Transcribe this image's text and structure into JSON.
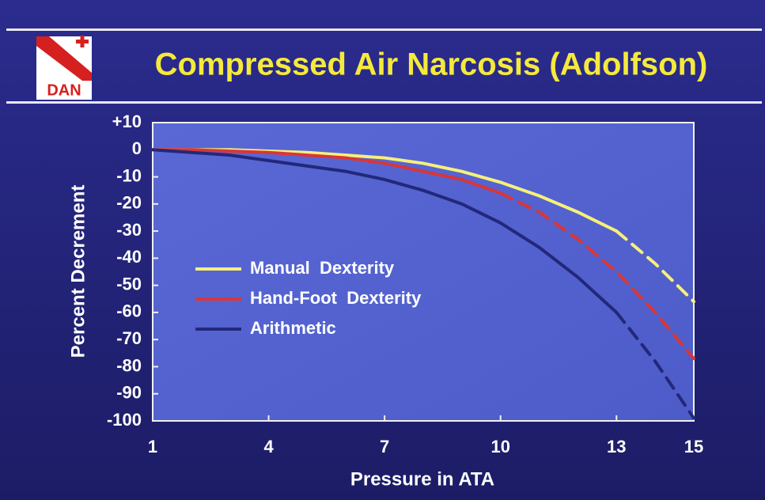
{
  "logo": {
    "text": "DAN"
  },
  "chart_data": {
    "type": "line",
    "title": "Compressed Air Narcosis (Adolfson)",
    "x_label": "Pressure in ATA",
    "y_label": "Percent Decrement",
    "x": [
      1,
      2,
      3,
      4,
      5,
      6,
      7,
      8,
      9,
      10,
      11,
      12,
      13,
      14,
      15
    ],
    "series": [
      {
        "name": "Manual  Dexterity",
        "color": "#f7f07a",
        "solid_until": 13,
        "values": [
          0,
          0,
          0,
          -0.5,
          -1,
          -2,
          -3,
          -5,
          -8,
          -12,
          -17,
          -23,
          -30,
          -42,
          -56
        ]
      },
      {
        "name": "Hand-Foot  Dexterity",
        "color": "#d8363a",
        "solid_until": 10,
        "values": [
          0,
          0,
          -0.5,
          -1,
          -2,
          -3,
          -5,
          -8,
          -11,
          -16,
          -23,
          -33,
          -45,
          -60,
          -77
        ]
      },
      {
        "name": "Arithmetic",
        "color": "#22287a",
        "solid_until": 13,
        "values": [
          0,
          -1,
          -2,
          -4,
          -6,
          -8,
          -11,
          -15,
          -20,
          -27,
          -36,
          -47,
          -60,
          -78,
          -99
        ]
      }
    ],
    "xlim": [
      1,
      15
    ],
    "xticks": [
      1,
      4,
      7,
      10,
      13,
      15
    ],
    "ylim": [
      -100,
      10
    ],
    "yticks": [
      {
        "value": 10,
        "label": "+10"
      },
      0,
      -10,
      -20,
      -30,
      -40,
      -50,
      -60,
      -70,
      -80,
      -90,
      -100
    ]
  }
}
